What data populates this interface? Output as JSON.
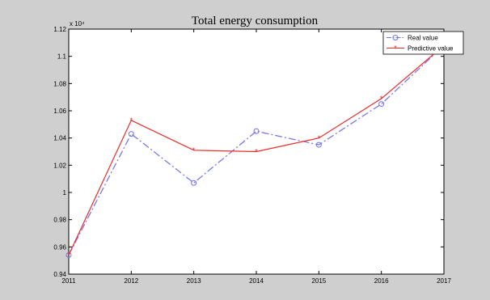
{
  "colors": {
    "figure_background": "#cfcfcf",
    "axes_background": "#ffffff",
    "real_series": "#6f6ff0",
    "predictive_series": "#ee2a2a"
  },
  "chart_data": {
    "type": "line",
    "title": "Total energy consumption",
    "xlabel": "",
    "ylabel": "",
    "y_exponent_label": "x 10⁴",
    "x": [
      2011,
      2012,
      2013,
      2014,
      2015,
      2016,
      2017
    ],
    "xlim": [
      2011,
      2017
    ],
    "ylim": [
      0.94,
      1.12
    ],
    "x_ticks": [
      "2011",
      "2012",
      "2013",
      "2014",
      "2015",
      "2016",
      "2017"
    ],
    "y_ticks": [
      "0.94",
      "0.96",
      "0.98",
      "1",
      "1.02",
      "1.04",
      "1.06",
      "1.08",
      "1.1",
      "1.12"
    ],
    "grid": false,
    "legend_position": "top-right",
    "series": [
      {
        "name": "Real value",
        "marker": "circle",
        "line_style": "dash-dot",
        "color": "#6f6ff0",
        "values": [
          0.954,
          1.043,
          1.007,
          1.045,
          1.035,
          1.065,
          1.108
        ]
      },
      {
        "name": "Predictive value",
        "marker": "star",
        "line_style": "solid",
        "color": "#ee2a2a",
        "values": [
          0.954,
          1.053,
          1.031,
          1.03,
          1.04,
          1.069,
          1.108
        ]
      }
    ]
  }
}
